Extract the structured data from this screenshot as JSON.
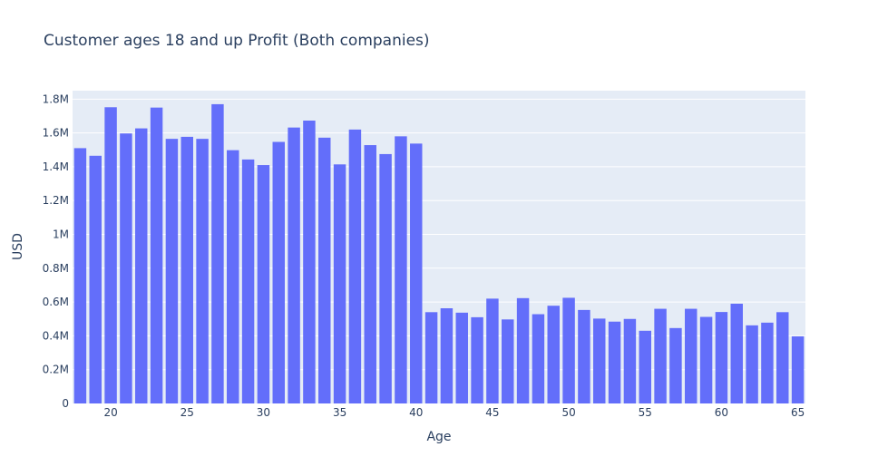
{
  "chart_data": {
    "type": "bar",
    "title": "Customer ages 18 and up Profit (Both companies)",
    "xlabel": "Age",
    "ylabel": "USD",
    "xlim": [
      17.5,
      65.5
    ],
    "ylim": [
      0,
      1850000
    ],
    "grid": true,
    "colors": {
      "bar": "#636efa",
      "plot_bg": "#e5ecf6",
      "grid": "#ffffff",
      "text": "#2a3f5f"
    },
    "x_ticks": [
      20,
      25,
      30,
      35,
      40,
      45,
      50,
      55,
      60,
      65
    ],
    "y_ticks": [
      0,
      200000,
      400000,
      600000,
      800000,
      1000000,
      1200000,
      1400000,
      1600000,
      1800000
    ],
    "y_tick_labels": [
      "0",
      "0.2M",
      "0.4M",
      "0.6M",
      "0.8M",
      "1M",
      "1.2M",
      "1.4M",
      "1.6M",
      "1.8M"
    ],
    "x_tick_labels": [
      "20",
      "25",
      "30",
      "35",
      "40",
      "45",
      "50",
      "55",
      "60",
      "65"
    ],
    "x": [
      18,
      19,
      20,
      21,
      22,
      23,
      24,
      25,
      26,
      27,
      28,
      29,
      30,
      31,
      32,
      33,
      34,
      35,
      36,
      37,
      38,
      39,
      40,
      41,
      42,
      43,
      44,
      45,
      46,
      47,
      48,
      49,
      50,
      51,
      52,
      53,
      54,
      55,
      56,
      57,
      58,
      59,
      60,
      61,
      62,
      63,
      64,
      65
    ],
    "values": [
      1510000,
      1465000,
      1752000,
      1597000,
      1627000,
      1750000,
      1565000,
      1577000,
      1565000,
      1770000,
      1498000,
      1443000,
      1410000,
      1547000,
      1632000,
      1673000,
      1572000,
      1414000,
      1620000,
      1528000,
      1475000,
      1580000,
      1537000,
      540000,
      563000,
      537000,
      510000,
      620000,
      497000,
      623000,
      528000,
      578000,
      625000,
      553000,
      502000,
      484000,
      500000,
      430000,
      560000,
      446000,
      560000,
      512000,
      541000,
      590000,
      462000,
      478000,
      540000,
      397000
    ]
  }
}
